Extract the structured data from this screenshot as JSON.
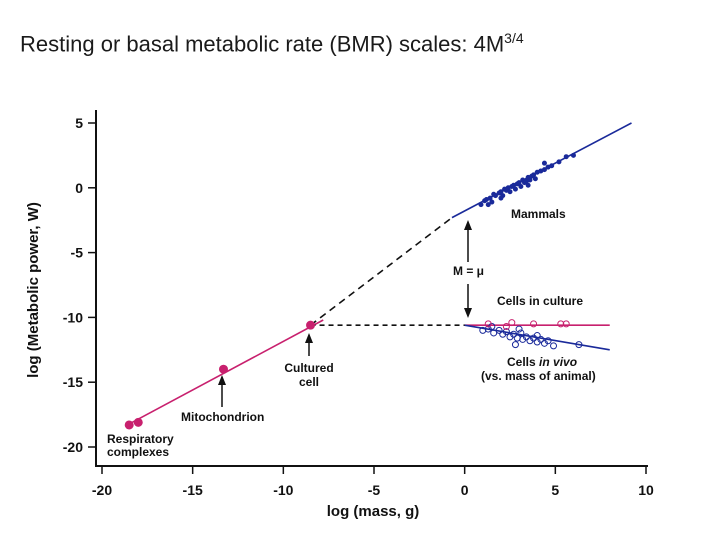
{
  "title": {
    "text": "Resting or basal metabolic rate (BMR) scales: 4M",
    "exponent": "3/4"
  },
  "chart_data": {
    "type": "scatter",
    "xlabel": "log (mass, g)",
    "ylabel": "log (Metabolic power, W)",
    "xlim": [
      -20,
      10
    ],
    "ylim": [
      -20,
      5
    ],
    "xticks": [
      -20,
      -15,
      -10,
      -5,
      0,
      5,
      10
    ],
    "yticks": [
      5,
      0,
      -5,
      -10,
      -15,
      -20
    ],
    "grid": false,
    "colors": {
      "mammals": "#1a2a9a",
      "cells_in_vivo": "#1a2a9a",
      "subcellular": "#c8206e",
      "cells_in_culture": "#c8206e",
      "extrapolation": "#111111"
    },
    "series": [
      {
        "key": "mammals",
        "marker": "filled",
        "points": [
          [
            0.9,
            -1.3
          ],
          [
            1.1,
            -1.0
          ],
          [
            1.2,
            -0.9
          ],
          [
            1.4,
            -0.8
          ],
          [
            1.5,
            -1.1
          ],
          [
            1.6,
            -0.5
          ],
          [
            1.7,
            -0.6
          ],
          [
            1.9,
            -0.4
          ],
          [
            2.0,
            -0.3
          ],
          [
            2.1,
            -0.6
          ],
          [
            2.2,
            -0.1
          ],
          [
            2.3,
            -0.2
          ],
          [
            2.4,
            0.0
          ],
          [
            2.5,
            -0.3
          ],
          [
            2.6,
            0.1
          ],
          [
            2.7,
            0.2
          ],
          [
            2.8,
            -0.1
          ],
          [
            2.9,
            0.3
          ],
          [
            3.0,
            0.4
          ],
          [
            3.1,
            0.1
          ],
          [
            3.2,
            0.6
          ],
          [
            3.3,
            0.4
          ],
          [
            3.4,
            0.5
          ],
          [
            3.5,
            0.8
          ],
          [
            3.6,
            0.6
          ],
          [
            3.7,
            0.9
          ],
          [
            3.8,
            1.0
          ],
          [
            3.9,
            0.7
          ],
          [
            4.0,
            1.2
          ],
          [
            4.2,
            1.3
          ],
          [
            4.4,
            1.4
          ],
          [
            4.6,
            1.6
          ],
          [
            4.8,
            1.7
          ],
          [
            5.2,
            2.0
          ],
          [
            5.6,
            2.4
          ],
          [
            6.0,
            2.5
          ],
          [
            1.3,
            -1.3
          ],
          [
            2.0,
            -0.8
          ],
          [
            3.5,
            0.2
          ],
          [
            4.4,
            1.9
          ]
        ]
      },
      {
        "key": "cells_in_vivo",
        "marker": "open",
        "points": [
          [
            1.0,
            -11.0
          ],
          [
            1.3,
            -10.9
          ],
          [
            1.6,
            -11.2
          ],
          [
            1.9,
            -11.0
          ],
          [
            2.1,
            -11.3
          ],
          [
            2.3,
            -11.1
          ],
          [
            2.5,
            -11.5
          ],
          [
            2.7,
            -11.3
          ],
          [
            2.9,
            -11.6
          ],
          [
            3.1,
            -11.2
          ],
          [
            3.2,
            -11.7
          ],
          [
            3.4,
            -11.5
          ],
          [
            3.6,
            -11.8
          ],
          [
            3.8,
            -11.6
          ],
          [
            4.0,
            -11.9
          ],
          [
            4.2,
            -11.7
          ],
          [
            4.4,
            -12.0
          ],
          [
            4.6,
            -11.8
          ],
          [
            2.8,
            -12.1
          ],
          [
            4.9,
            -12.2
          ],
          [
            6.3,
            -12.1
          ],
          [
            1.5,
            -10.7
          ],
          [
            3.0,
            -10.9
          ],
          [
            4.0,
            -11.4
          ]
        ]
      },
      {
        "key": "cells_in_culture",
        "marker": "open",
        "points": [
          [
            1.3,
            -10.5
          ],
          [
            2.3,
            -10.7
          ],
          [
            2.6,
            -10.4
          ],
          [
            3.8,
            -10.5
          ],
          [
            5.3,
            -10.5
          ],
          [
            5.6,
            -10.5
          ]
        ]
      },
      {
        "key": "subcellular",
        "marker": "filled",
        "points": [
          [
            -18.5,
            -18.3
          ],
          [
            -18.0,
            -18.1
          ],
          [
            -13.3,
            -14.0
          ],
          [
            -8.5,
            -10.6
          ]
        ]
      }
    ],
    "fit_lines": [
      {
        "key": "mammals",
        "from": [
          -0.7,
          -2.3
        ],
        "to": [
          9.2,
          5.0
        ]
      },
      {
        "key": "subcellular",
        "from": [
          -18.6,
          -18.3
        ],
        "to": [
          -7.8,
          -10.2
        ]
      },
      {
        "key": "cells_in_culture",
        "from": [
          0,
          -10.6
        ],
        "to": [
          8,
          -10.6
        ]
      },
      {
        "key": "cells_in_vivo",
        "from": [
          0,
          -10.6
        ],
        "to": [
          8,
          -12.5
        ]
      },
      {
        "key": "extrapolation",
        "dashed": true,
        "from": [
          -8.5,
          -10.6
        ],
        "to": [
          -0.7,
          -2.3
        ]
      },
      {
        "key": "extrapolation",
        "dashed": true,
        "from": [
          -8.5,
          -10.6
        ],
        "to": [
          0,
          -10.6
        ]
      }
    ],
    "annotations": {
      "mammals": "Mammals",
      "m_equals_mu": "M = μ",
      "cells_in_culture": "Cells in culture",
      "cells_in_vivo": "Cells ",
      "cells_in_vivo_italic": "in vivo",
      "cells_in_vivo_note": "(vs. mass of animal)",
      "cultured_cell_1": "Cultured",
      "cultured_cell_2": "cell",
      "mitochondrion": "Mitochondrion",
      "respiratory_1": "Respiratory",
      "respiratory_2": "complexes"
    }
  }
}
